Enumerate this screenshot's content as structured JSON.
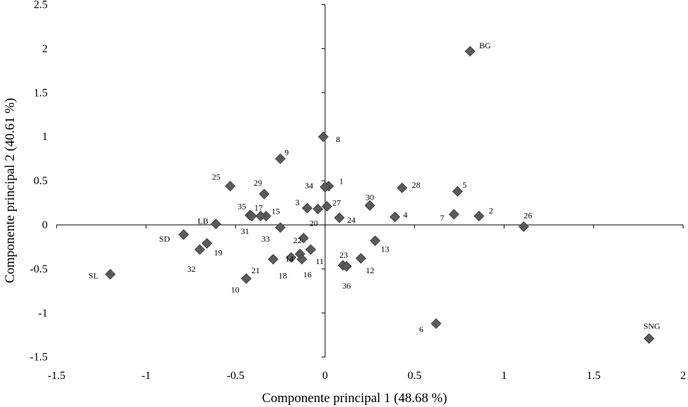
{
  "chart_data": {
    "type": "scatter",
    "title": "",
    "xlabel": "Componente principal 1 (48.68 %)",
    "ylabel": "Componente principal 2 (40.61 %)",
    "xlim": [
      -1.5,
      2
    ],
    "ylim": [
      -1.5,
      2.5
    ],
    "xticks": [
      -1.5,
      -1,
      -0.5,
      0,
      0.5,
      1,
      1.5,
      2
    ],
    "yticks": [
      -1.5,
      -1,
      -0.5,
      0,
      0.5,
      1,
      1.5,
      2,
      2.5
    ],
    "xtick_labels": [
      "-1.5",
      "-1",
      "-0.5",
      "0",
      "0.5",
      "1",
      "1.5",
      "2"
    ],
    "ytick_labels": [
      "-1.5",
      "-1",
      "-0.5",
      "0",
      "0.5",
      "1",
      "1.5",
      "2",
      "2.5"
    ],
    "grid": false,
    "marker": "diamond",
    "marker_color": "#5a5a5a",
    "points": [
      {
        "label": "BG",
        "x": 0.81,
        "y": 1.97
      },
      {
        "label": "SNG",
        "x": 1.81,
        "y": -1.29
      },
      {
        "label": "SL",
        "x": -1.2,
        "y": -0.56
      },
      {
        "label": "SD",
        "x": -0.79,
        "y": -0.11
      },
      {
        "label": "LB",
        "x": -0.61,
        "y": 0.01
      },
      {
        "label": "1",
        "x": 0.02,
        "y": 0.44
      },
      {
        "label": "2",
        "x": 0.86,
        "y": 0.1
      },
      {
        "label": "3",
        "x": -0.1,
        "y": 0.19
      },
      {
        "label": "4",
        "x": 0.39,
        "y": 0.09
      },
      {
        "label": "5",
        "x": 0.74,
        "y": 0.38
      },
      {
        "label": "6",
        "x": 0.62,
        "y": -1.12
      },
      {
        "label": "7",
        "x": 0.72,
        "y": 0.12
      },
      {
        "label": "8",
        "x": -0.01,
        "y": 1.0
      },
      {
        "label": "9",
        "x": -0.25,
        "y": 0.75
      },
      {
        "label": "10",
        "x": -0.44,
        "y": -0.61
      },
      {
        "label": "11",
        "x": -0.08,
        "y": -0.28
      },
      {
        "label": "12",
        "x": 0.2,
        "y": -0.38
      },
      {
        "label": "13",
        "x": 0.28,
        "y": -0.18
      },
      {
        "label": "14",
        "x": -0.14,
        "y": -0.33
      },
      {
        "label": "15",
        "x": -0.33,
        "y": 0.1
      },
      {
        "label": "16",
        "x": -0.13,
        "y": -0.39
      },
      {
        "label": "17",
        "x": -0.36,
        "y": 0.1
      },
      {
        "label": "18",
        "x": -0.19,
        "y": -0.37
      },
      {
        "label": "19",
        "x": -0.66,
        "y": -0.21
      },
      {
        "label": "20",
        "x": -0.04,
        "y": 0.18
      },
      {
        "label": "21",
        "x": -0.29,
        "y": -0.39
      },
      {
        "label": "22",
        "x": -0.12,
        "y": -0.15
      },
      {
        "label": "23",
        "x": 0.1,
        "y": -0.46
      },
      {
        "label": "24",
        "x": 0.08,
        "y": 0.08
      },
      {
        "label": "25",
        "x": -0.53,
        "y": 0.44
      },
      {
        "label": "26",
        "x": 1.11,
        "y": -0.02
      },
      {
        "label": "27",
        "x": 0.01,
        "y": 0.21
      },
      {
        "label": "28",
        "x": 0.43,
        "y": 0.42
      },
      {
        "label": "29",
        "x": -0.34,
        "y": 0.35
      },
      {
        "label": "30",
        "x": 0.25,
        "y": 0.22
      },
      {
        "label": "31",
        "x": -0.42,
        "y": 0.11
      },
      {
        "label": "32",
        "x": -0.7,
        "y": -0.28
      },
      {
        "label": "33",
        "x": -0.25,
        "y": -0.03
      },
      {
        "label": "34",
        "x": 0.0,
        "y": 0.43
      },
      {
        "label": "35",
        "x": -0.41,
        "y": 0.1
      },
      {
        "label": "36",
        "x": 0.12,
        "y": -0.47
      }
    ]
  }
}
